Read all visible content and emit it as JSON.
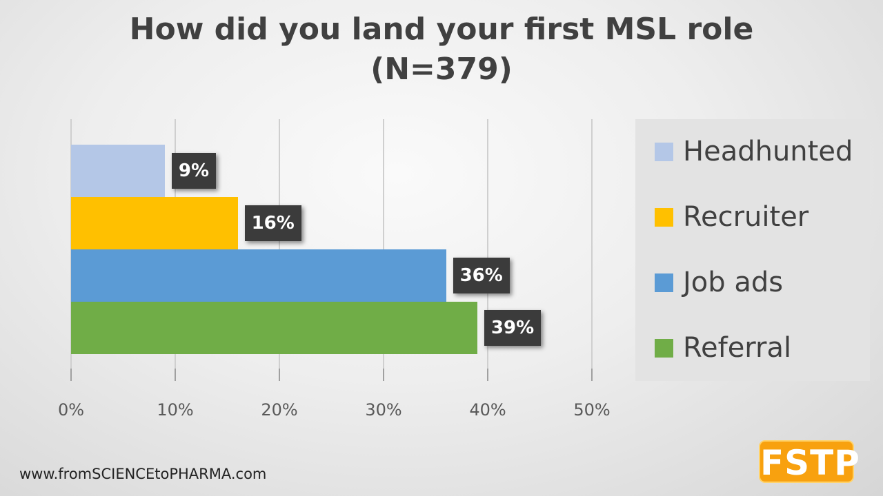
{
  "chart_data": {
    "type": "bar",
    "orientation": "horizontal",
    "title": "How did you land your first MSL role (N=379)",
    "title_lines": [
      "How did you land your first MSL role",
      "(N=379)"
    ],
    "categories": [
      "Headhunted",
      "Recruiter",
      "Job ads",
      "Referral"
    ],
    "values": [
      9,
      16,
      36,
      39
    ],
    "data_labels": [
      "9%",
      "16%",
      "36%",
      "39%"
    ],
    "colors": [
      "#b4c7e7",
      "#ffc000",
      "#5b9bd5",
      "#70ad47"
    ],
    "xlabel": "",
    "ylabel": "",
    "xlim": [
      0,
      50
    ],
    "x_ticks": [
      "0%",
      "10%",
      "20%",
      "30%",
      "40%",
      "50%"
    ],
    "grid": true,
    "legend_position": "right",
    "legend": [
      "Headhunted",
      "Recruiter",
      "Job ads",
      "Referral"
    ]
  },
  "footer": {
    "url": "www.fromSCIENCEtoPHARMA.com"
  },
  "logo": {
    "text": "FSTP",
    "color": "#f8a10f"
  }
}
